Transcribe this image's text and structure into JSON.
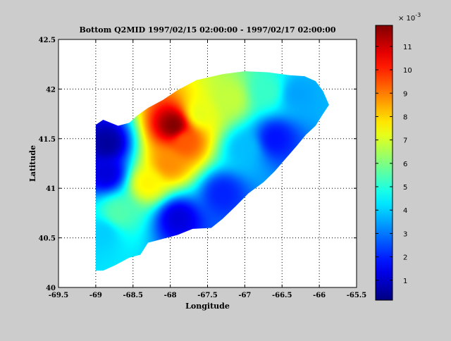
{
  "chart_data": {
    "type": "heatmap",
    "title": "Bottom Q2MID  1997/02/15 02:00:00 - 1997/02/17 02:00:00",
    "xlabel": "Longitude",
    "ylabel": "Latitude",
    "xlim": [
      -69.5,
      -65.5
    ],
    "ylim": [
      40,
      42.5
    ],
    "x_ticks": [
      -69.5,
      -69,
      -68.5,
      -68,
      -67.5,
      -67,
      -66.5,
      -66,
      -65.5
    ],
    "x_tick_labels": [
      "-69.5",
      "-69",
      "-68.5",
      "-68",
      "-67.5",
      "-67",
      "-66.5",
      "-66",
      "-65.5"
    ],
    "y_ticks": [
      40,
      40.5,
      41,
      41.5,
      42,
      42.5
    ],
    "y_tick_labels": [
      "40",
      "40.5",
      "41",
      "41.5",
      "42",
      "42.5"
    ],
    "grid": true,
    "colormap": "jet",
    "colorbar": {
      "range": [
        0.00015,
        0.0119
      ],
      "ticks": [
        1,
        2,
        3,
        4,
        5,
        6,
        7,
        8,
        9,
        10,
        11
      ],
      "tick_labels": [
        "1",
        "2",
        "3",
        "4",
        "5",
        "6",
        "7",
        "8",
        "9",
        "10",
        "11"
      ],
      "multiplier_text": "× 10",
      "multiplier_exponent": "-3"
    },
    "domain_outline_lon_lat": [
      [
        -69.0,
        41.64
      ],
      [
        -68.9,
        41.69
      ],
      [
        -68.8,
        41.66
      ],
      [
        -68.7,
        41.63
      ],
      [
        -68.55,
        41.66
      ],
      [
        -68.45,
        41.73
      ],
      [
        -68.3,
        41.81
      ],
      [
        -68.1,
        41.89
      ],
      [
        -67.9,
        41.99
      ],
      [
        -67.65,
        42.09
      ],
      [
        -67.3,
        42.15
      ],
      [
        -67.0,
        42.18
      ],
      [
        -66.7,
        42.17
      ],
      [
        -66.4,
        42.14
      ],
      [
        -66.2,
        42.13
      ],
      [
        -66.05,
        42.08
      ],
      [
        -65.95,
        41.98
      ],
      [
        -65.87,
        41.84
      ],
      [
        -65.95,
        41.75
      ],
      [
        -66.05,
        41.63
      ],
      [
        -66.18,
        41.54
      ],
      [
        -66.3,
        41.43
      ],
      [
        -66.45,
        41.3
      ],
      [
        -66.6,
        41.17
      ],
      [
        -66.75,
        41.06
      ],
      [
        -66.95,
        40.95
      ],
      [
        -67.12,
        40.82
      ],
      [
        -67.3,
        40.69
      ],
      [
        -67.45,
        40.6
      ],
      [
        -67.7,
        40.59
      ],
      [
        -67.9,
        40.53
      ],
      [
        -68.1,
        40.49
      ],
      [
        -68.3,
        40.45
      ],
      [
        -68.4,
        40.33
      ],
      [
        -68.55,
        40.3
      ],
      [
        -68.75,
        40.22
      ],
      [
        -68.9,
        40.17
      ],
      [
        -69.0,
        40.17
      ]
    ],
    "value_blobs": [
      {
        "lon": -67.95,
        "lat": 41.63,
        "value": 0.0119
      },
      {
        "lon": -67.8,
        "lat": 41.47,
        "value": 0.0094
      },
      {
        "lon": -68.02,
        "lat": 41.25,
        "value": 0.0088
      },
      {
        "lon": -68.3,
        "lat": 41.05,
        "value": 0.0076
      },
      {
        "lon": -67.6,
        "lat": 41.75,
        "value": 0.0072
      },
      {
        "lon": -67.2,
        "lat": 41.9,
        "value": 0.0068
      },
      {
        "lon": -66.7,
        "lat": 41.98,
        "value": 0.0052
      },
      {
        "lon": -66.3,
        "lat": 41.95,
        "value": 0.0035
      },
      {
        "lon": -68.7,
        "lat": 40.75,
        "value": 0.0055
      },
      {
        "lon": -68.9,
        "lat": 40.55,
        "value": 0.004
      },
      {
        "lon": -67.0,
        "lat": 41.4,
        "value": 0.0038
      },
      {
        "lon": -66.6,
        "lat": 41.5,
        "value": 0.0018
      },
      {
        "lon": -67.3,
        "lat": 40.95,
        "value": 0.002
      },
      {
        "lon": -67.9,
        "lat": 40.7,
        "value": 0.0012
      },
      {
        "lon": -68.85,
        "lat": 41.45,
        "value": 0.0005
      },
      {
        "lon": -68.85,
        "lat": 41.15,
        "value": 0.0012
      }
    ]
  }
}
